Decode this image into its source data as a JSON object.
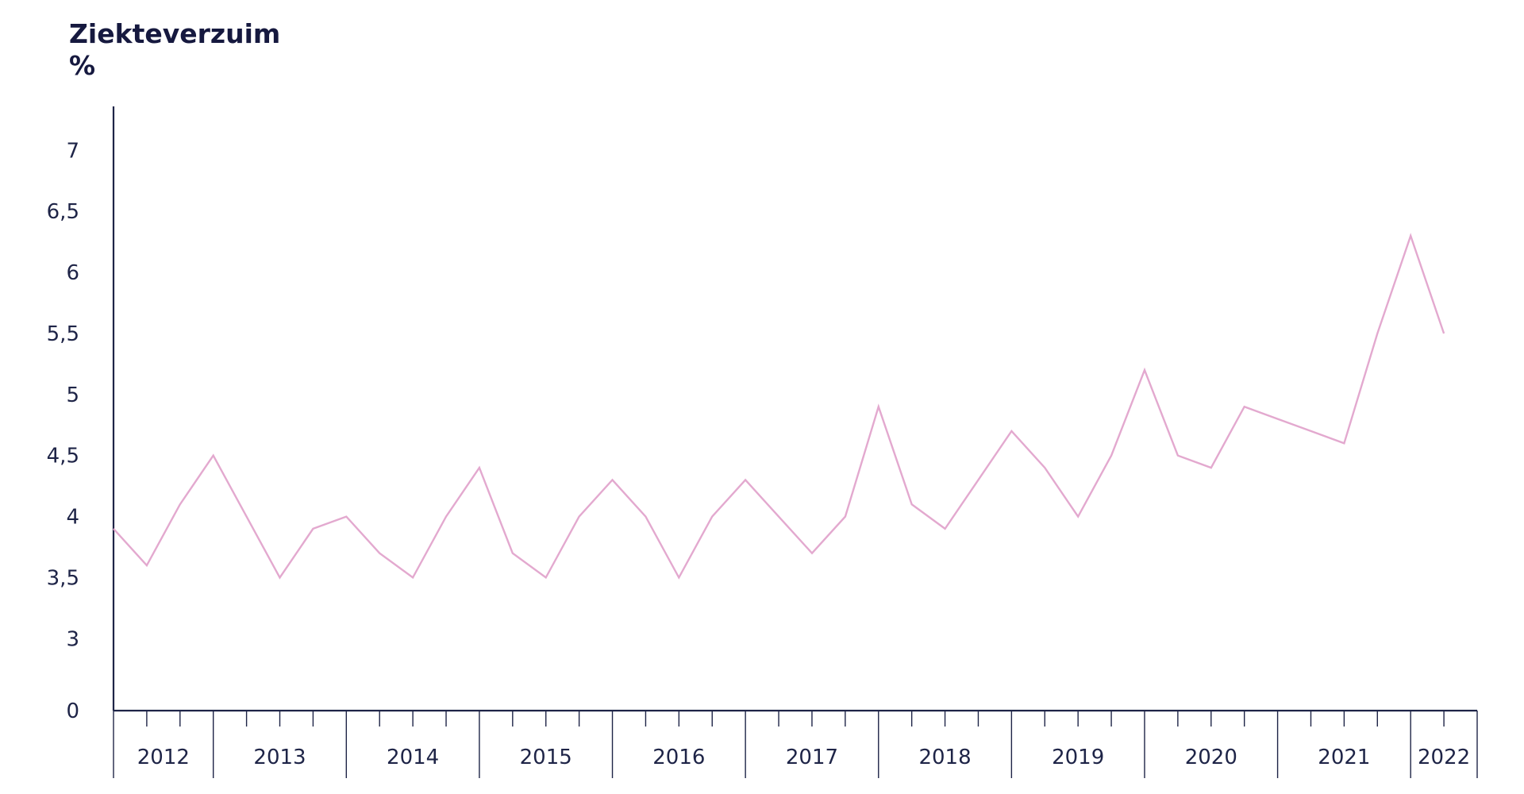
{
  "chart_data": {
    "type": "line",
    "title": "Ziekteverzuim",
    "y_label": "%",
    "categories": [
      null,
      null,
      null,
      null,
      null,
      null,
      null,
      null,
      null,
      null,
      null,
      null,
      null,
      null,
      null,
      null,
      null,
      null,
      null,
      null,
      null,
      null,
      null,
      null,
      null,
      null,
      null,
      null,
      null,
      null,
      null,
      null,
      null,
      null,
      null,
      null,
      null,
      null,
      null,
      null,
      null
    ],
    "groups": [
      {
        "label": "2012",
        "size": 3
      },
      {
        "label": "2013",
        "size": 4
      },
      {
        "label": "2014",
        "size": 4
      },
      {
        "label": "2015",
        "size": 4
      },
      {
        "label": "2016",
        "size": 4
      },
      {
        "label": "2017",
        "size": 4
      },
      {
        "label": "2018",
        "size": 4
      },
      {
        "label": "2019",
        "size": 4
      },
      {
        "label": "2020",
        "size": 4
      },
      {
        "label": "2021",
        "size": 4
      },
      {
        "label": "2022",
        "size": 2
      }
    ],
    "series": [
      {
        "name": "Ziekteverzuim",
        "color": "#e3a9cf",
        "values": [
          3.9,
          3.6,
          4.1,
          4.5,
          4.0,
          3.5,
          3.9,
          4.0,
          3.7,
          3.5,
          4.0,
          4.4,
          3.7,
          3.5,
          4.0,
          4.3,
          4.0,
          3.5,
          4.0,
          4.3,
          4.0,
          3.7,
          4.0,
          4.9,
          4.1,
          3.9,
          4.3,
          4.7,
          4.4,
          4.0,
          4.5,
          5.2,
          4.5,
          4.4,
          4.9,
          4.8,
          4.7,
          4.6,
          5.5,
          6.3,
          5.5
        ]
      }
    ],
    "ylim": [
      2.41,
      7.36
    ],
    "axis_break": true,
    "yticks": [
      0,
      3,
      {
        "value": 3.5,
        "label": "3,5"
      },
      4,
      {
        "value": 4.5,
        "label": "4,5"
      },
      5,
      {
        "value": 5.5,
        "label": "5,5"
      },
      6,
      {
        "value": 6.5,
        "label": "6,5"
      },
      7
    ]
  }
}
